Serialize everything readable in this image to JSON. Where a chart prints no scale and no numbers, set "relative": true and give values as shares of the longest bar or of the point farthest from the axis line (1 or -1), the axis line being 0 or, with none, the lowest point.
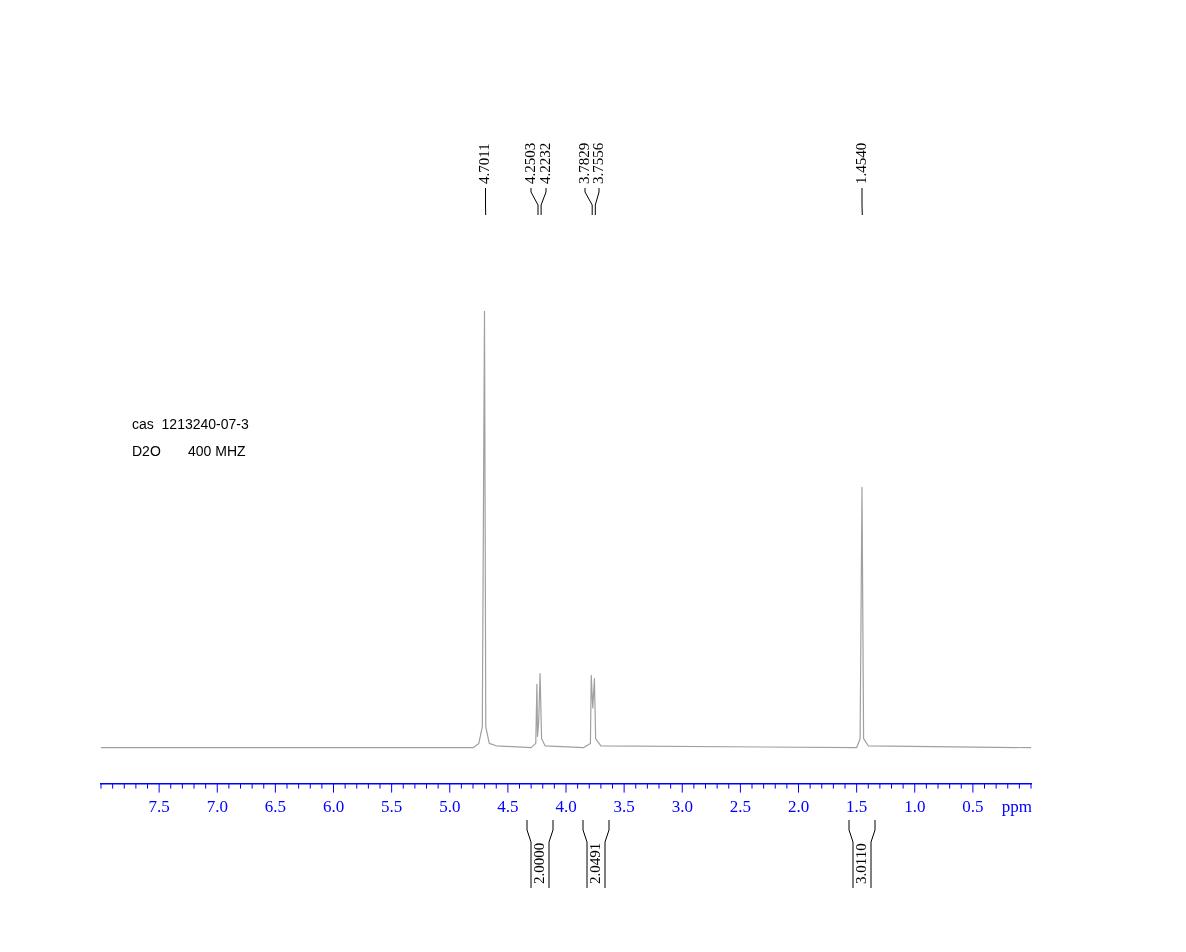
{
  "chart_data": {
    "type": "line",
    "relative": true,
    "xlabel": "ppm",
    "xlim": [
      8.0,
      0
    ],
    "xticks": [
      {
        "value": 8.0,
        "label": null
      },
      {
        "value": 7.9,
        "label": null
      },
      {
        "value": 7.8,
        "label": null
      },
      {
        "value": 7.7,
        "label": null
      },
      {
        "value": 7.6,
        "label": null
      },
      7.5,
      {
        "value": 7.4,
        "label": null
      },
      {
        "value": 7.3,
        "label": null
      },
      {
        "value": 7.2,
        "label": null
      },
      {
        "value": 7.1,
        "label": null
      },
      {
        "value": 7,
        "label": "7.0"
      },
      {
        "value": 6.9,
        "label": null
      },
      {
        "value": 6.8,
        "label": null
      },
      {
        "value": 6.7,
        "label": null
      },
      {
        "value": 6.6,
        "label": null
      },
      6.5,
      {
        "value": 6.4,
        "label": null
      },
      {
        "value": 6.3,
        "label": null
      },
      {
        "value": 6.2,
        "label": null
      },
      {
        "value": 6.1,
        "label": null
      },
      {
        "value": 6,
        "label": "6.0"
      },
      {
        "value": 5.9,
        "label": null
      },
      {
        "value": 5.8,
        "label": null
      },
      {
        "value": 5.7,
        "label": null
      },
      {
        "value": 5.6,
        "label": null
      },
      5.5,
      {
        "value": 5.4,
        "label": null
      },
      {
        "value": 5.3,
        "label": null
      },
      {
        "value": 5.2,
        "label": null
      },
      {
        "value": 5.1,
        "label": null
      },
      {
        "value": 5,
        "label": "5.0"
      },
      {
        "value": 4.9,
        "label": null
      },
      {
        "value": 4.8,
        "label": null
      },
      {
        "value": 4.7,
        "label": null
      },
      {
        "value": 4.6,
        "label": null
      },
      4.5,
      {
        "value": 4.4,
        "label": null
      },
      {
        "value": 4.3,
        "label": null
      },
      {
        "value": 4.2,
        "label": null
      },
      {
        "value": 4.1,
        "label": null
      },
      {
        "value": 4,
        "label": "4.0"
      },
      {
        "value": 3.9,
        "label": null
      },
      {
        "value": 3.8,
        "label": null
      },
      {
        "value": 3.7,
        "label": null
      },
      {
        "value": 3.6,
        "label": null
      },
      3.5,
      {
        "value": 3.4,
        "label": null
      },
      {
        "value": 3.3,
        "label": null
      },
      {
        "value": 3.2,
        "label": null
      },
      {
        "value": 3.1,
        "label": null
      },
      {
        "value": 3,
        "label": "3.0"
      },
      {
        "value": 2.9,
        "label": null
      },
      {
        "value": 2.8,
        "label": null
      },
      {
        "value": 2.7,
        "label": null
      },
      {
        "value": 2.6,
        "label": null
      },
      2.5,
      {
        "value": 2.4,
        "label": null
      },
      {
        "value": 2.3,
        "label": null
      },
      {
        "value": 2.2,
        "label": null
      },
      {
        "value": 2.1,
        "label": null
      },
      {
        "value": 2,
        "label": "2.0"
      },
      {
        "value": 1.9,
        "label": null
      },
      {
        "value": 1.8,
        "label": null
      },
      {
        "value": 1.7,
        "label": null
      },
      {
        "value": 1.6,
        "label": null
      },
      1.5,
      {
        "value": 1.4,
        "label": null
      },
      {
        "value": 1.3,
        "label": null
      },
      {
        "value": 1.2,
        "label": null
      },
      {
        "value": 1.1,
        "label": null
      },
      {
        "value": 1,
        "label": "1.0"
      },
      {
        "value": 0.9,
        "label": null
      },
      {
        "value": 0.8,
        "label": null
      },
      {
        "value": 0.7,
        "label": null
      },
      {
        "value": 0.6,
        "label": null
      },
      0.5,
      {
        "value": 0.4,
        "label": null
      },
      {
        "value": 0.3,
        "label": null
      },
      {
        "value": 0.2,
        "label": null
      },
      {
        "value": 0.1,
        "label": null
      },
      {
        "value": 0,
        "label": null
      }
    ],
    "grid": false,
    "legend": false,
    "marker": "none",
    "line_style": "solid",
    "series": [
      {
        "color": "#a0a0a0",
        "x": [
          8.0,
          4.8,
          4.75,
          4.72,
          4.7011,
          4.69,
          4.66,
          4.6,
          4.3,
          4.26,
          4.2503,
          4.245,
          4.235,
          4.2232,
          4.21,
          4.18,
          3.85,
          3.79,
          3.7829,
          3.77,
          3.7556,
          3.745,
          3.7,
          1.5,
          1.47,
          1.454,
          1.44,
          1.4,
          0
        ],
        "values": [
          0.076,
          0.076,
          0.085,
          0.12,
          1,
          0.12,
          0.085,
          0.08,
          0.076,
          0.085,
          0.21,
          0.1,
          0.13,
          0.233,
          0.095,
          0.08,
          0.076,
          0.085,
          0.229,
          0.16,
          0.222,
          0.095,
          0.08,
          0.076,
          0.095,
          0.627,
          0.095,
          0.08,
          0.076
        ]
      }
    ],
    "annotations": [
      "cas  1213240-07-3",
      "D2O       400 MHZ",
      "4.7011",
      "4.2503",
      "4.2232",
      "3.7829",
      "3.7556",
      "1.4540",
      "2.0000",
      "2.0491",
      "3.0110"
    ]
  }
}
